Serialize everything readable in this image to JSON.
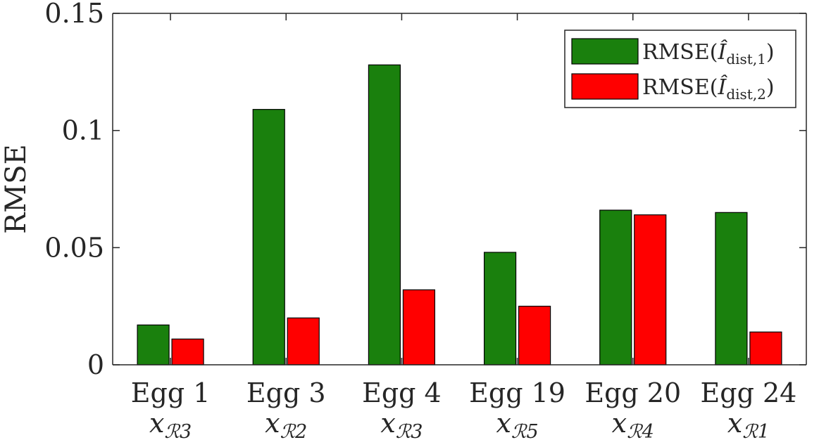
{
  "chart_data": {
    "type": "bar",
    "categories": [
      "Egg 1",
      "Egg 3",
      "Egg 4",
      "Egg 19",
      "Egg 20",
      "Egg 24"
    ],
    "sub_labels": [
      {
        "var": "x",
        "script": "ℛ3"
      },
      {
        "var": "x",
        "script": "ℛ2"
      },
      {
        "var": "x",
        "script": "ℛ3"
      },
      {
        "var": "x",
        "script": "ℛ5"
      },
      {
        "var": "x",
        "script": "ℛ4"
      },
      {
        "var": "x",
        "script": "ℛ1"
      }
    ],
    "series": [
      {
        "name": "RMSE(Î_dist,1)",
        "legend": {
          "prefix": "RMSE(",
          "symbol": "Î",
          "subscript": "dist,1",
          "suffix": ")"
        },
        "color": "#1a800d",
        "values": [
          0.017,
          0.109,
          0.128,
          0.048,
          0.066,
          0.065
        ]
      },
      {
        "name": "RMSE(Î_dist,2)",
        "legend": {
          "prefix": "RMSE(",
          "symbol": "Î",
          "subscript": "dist,2",
          "suffix": ")"
        },
        "color": "#ff0000",
        "values": [
          0.011,
          0.02,
          0.032,
          0.025,
          0.064,
          0.014
        ]
      }
    ],
    "ylabel": "RMSE",
    "xlabel": "",
    "ylim": [
      0,
      0.15
    ],
    "yticks": [
      "0",
      "0.05",
      "0.1",
      "0.15"
    ],
    "ytick_values": [
      0,
      0.05,
      0.1,
      0.15
    ],
    "grid": false,
    "legend_position": "top-right"
  }
}
